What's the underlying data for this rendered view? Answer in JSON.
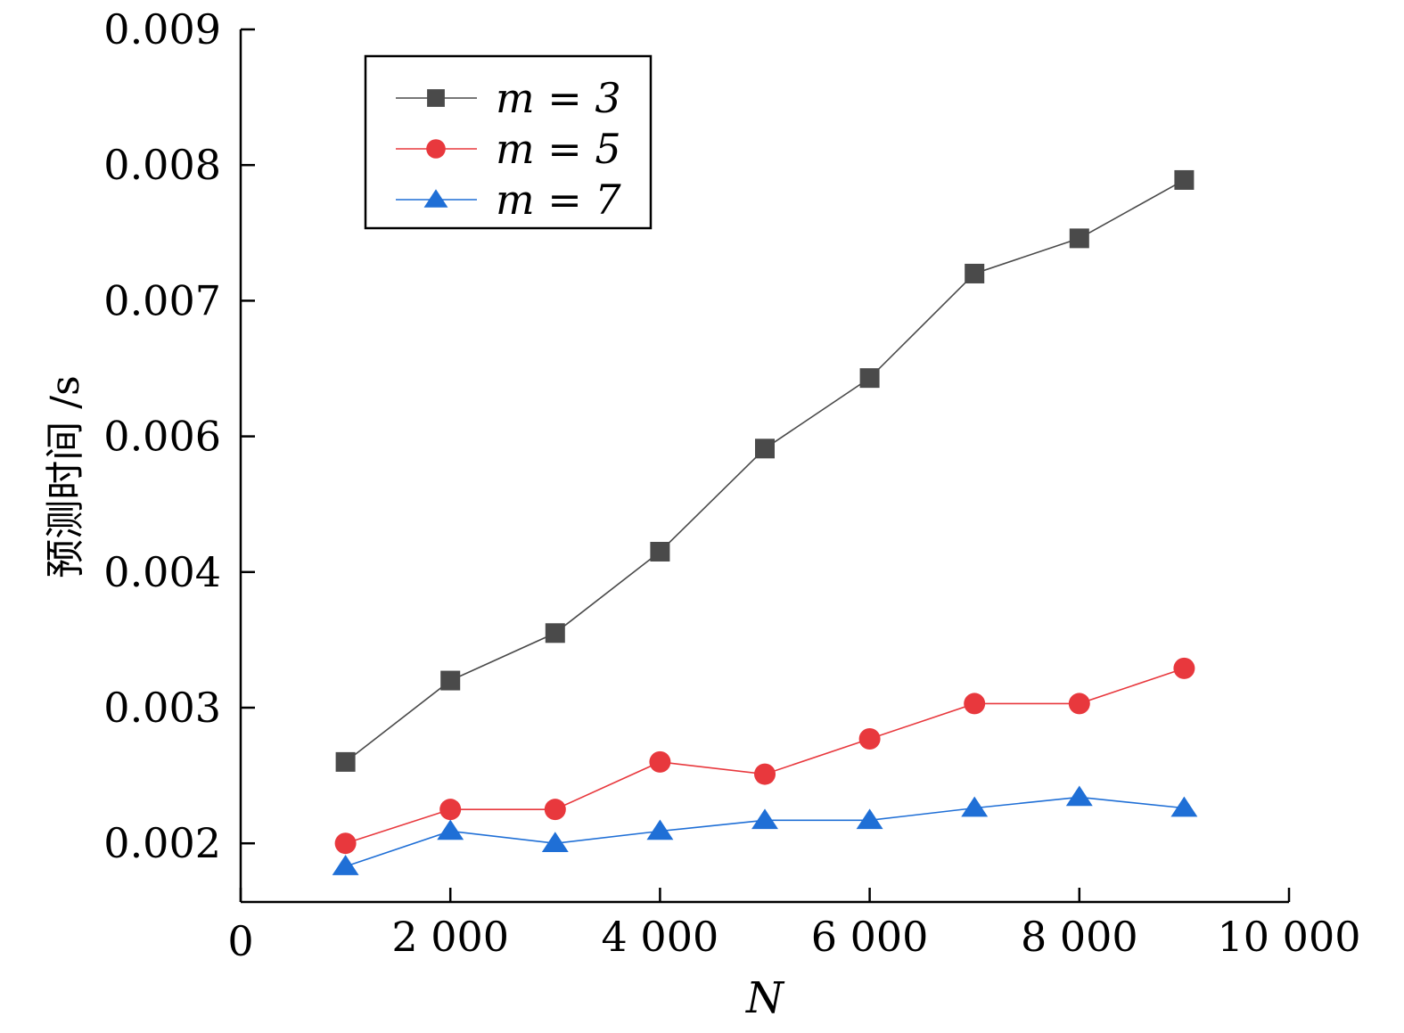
{
  "chart_data": {
    "type": "line",
    "title": "",
    "xlabel": "N",
    "ylabel": "预测时间 /s",
    "x": [
      1000,
      2000,
      3000,
      4000,
      5000,
      6000,
      7000,
      8000,
      9000
    ],
    "xlim": [
      0,
      10000
    ],
    "x_ticks": [
      0,
      2000,
      4000,
      6000,
      8000,
      10000
    ],
    "x_tick_labels": [
      "0",
      "2 000",
      "4 000",
      "6 000",
      "8 000",
      "10 000"
    ],
    "y_ticks": [
      0.002,
      0.003,
      0.004,
      0.006,
      0.007,
      0.008,
      0.009
    ],
    "y_tick_labels": [
      "0.002",
      "0.003",
      "0.004",
      "0.006",
      "0.007",
      "0.008",
      "0.009"
    ],
    "y_axis_note": "tick spacing is uniform although labels skip 0.005",
    "grid": false,
    "legend_position": "top-left",
    "series": [
      {
        "name": "m = 3",
        "marker": "square",
        "color": "#4a4a4a",
        "values": [
          0.0026,
          0.0032,
          0.00355,
          0.0043,
          0.00582,
          0.00643,
          0.0072,
          0.00746,
          0.00789
        ]
      },
      {
        "name": "m = 5",
        "marker": "circle",
        "color": "#e8383d",
        "values": [
          0.002,
          0.00225,
          0.00225,
          0.0026,
          0.00251,
          0.00277,
          0.00303,
          0.00303,
          0.00329
        ]
      },
      {
        "name": "m = 7",
        "marker": "triangle",
        "color": "#1f6fd6",
        "values": [
          0.00183,
          0.00209,
          0.002,
          0.00209,
          0.00217,
          0.00217,
          0.00226,
          0.00234,
          0.00226
        ]
      }
    ]
  }
}
